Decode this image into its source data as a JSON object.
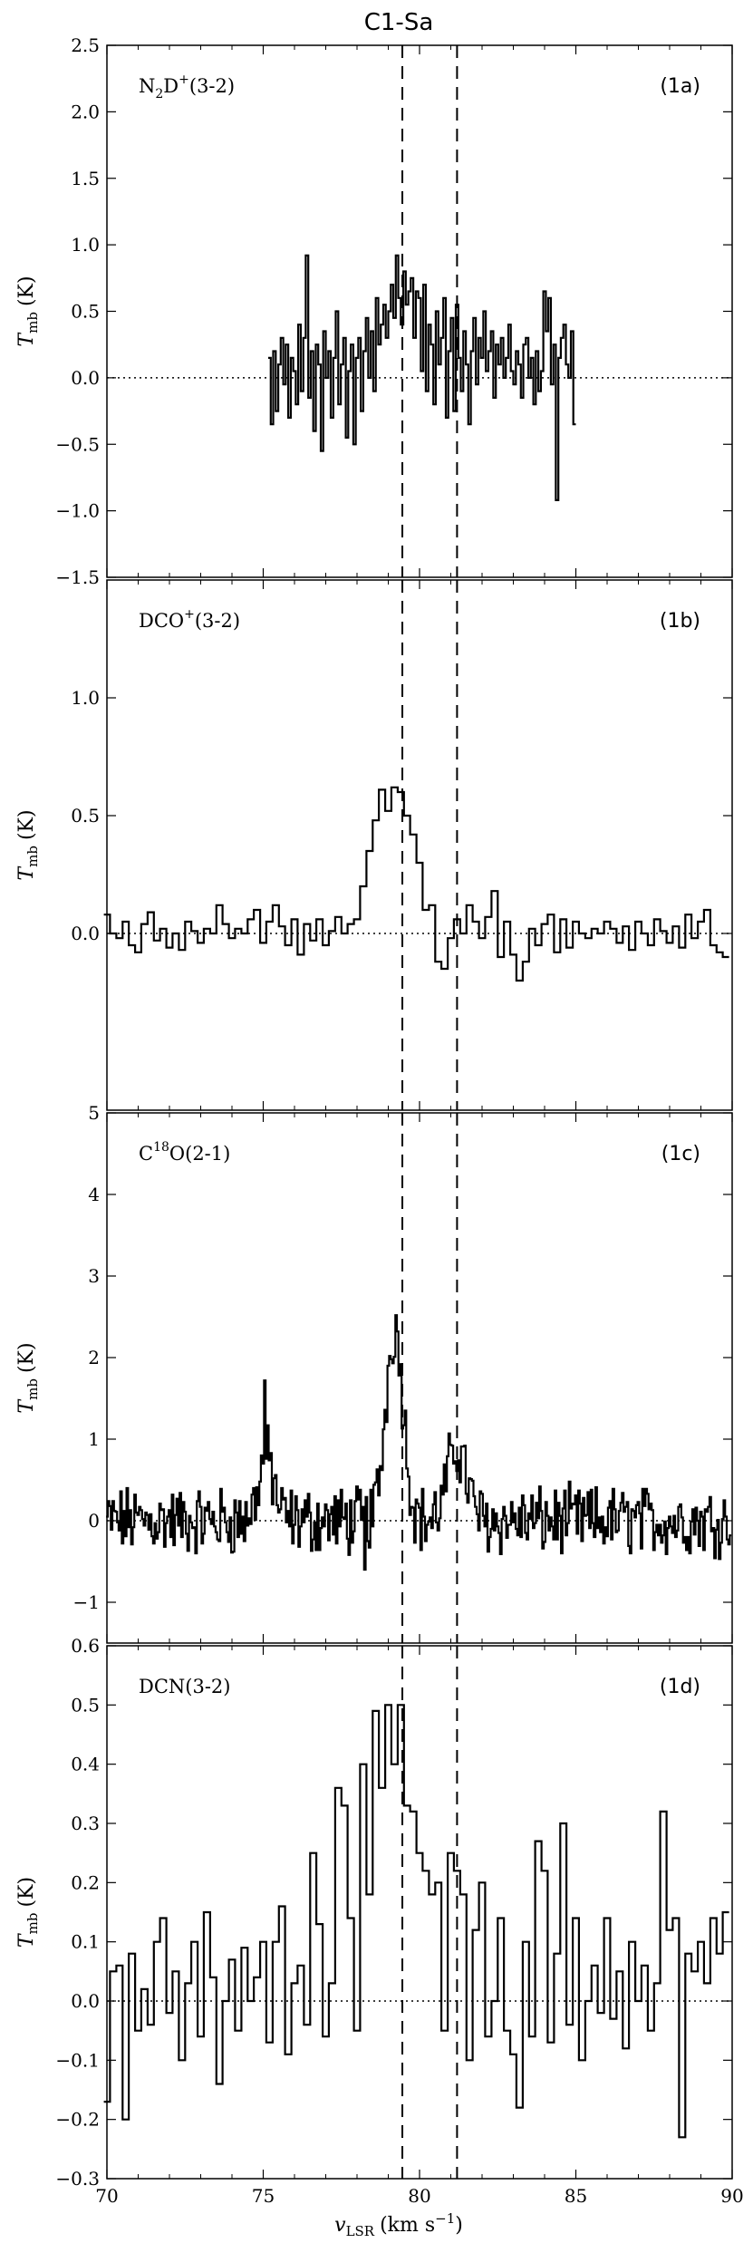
{
  "figure": {
    "title": "C1-Sa",
    "xlabel_main": "v",
    "xlabel_sub": "LSR",
    "xlabel_unit": "(km s",
    "xlabel_sup": "−1",
    "xlabel_close": ")",
    "ylabel_main": "T",
    "ylabel_sub": "mb",
    "ylabel_unit": "(K)",
    "xlim": [
      70,
      90
    ],
    "xticks": [
      70,
      75,
      80,
      85,
      90
    ],
    "vlines": [
      79.45,
      81.2
    ],
    "zero_line": 0.0
  },
  "chart_data": [
    {
      "type": "line",
      "step": true,
      "panel_label": "(1a)",
      "species_main": "N",
      "species_parts": [
        {
          "t": "N",
          "s": "base"
        },
        {
          "t": "2",
          "s": "sub"
        },
        {
          "t": "D",
          "s": "base"
        },
        {
          "t": "+",
          "s": "sup"
        },
        {
          "t": "(3-2)",
          "s": "base"
        }
      ],
      "ylim": [
        -1.5,
        2.5
      ],
      "yticks": [
        -1.5,
        -1.0,
        -0.5,
        0.0,
        0.5,
        1.0,
        1.5,
        2.0,
        2.5
      ],
      "ytick_labels": [
        "−1.5",
        "−1.0",
        "−0.5",
        "0.0",
        "0.5",
        "1.0",
        "1.5",
        "2.0",
        "2.5"
      ],
      "x": [
        75.2,
        75.28,
        75.36,
        75.44,
        75.52,
        75.6,
        75.68,
        75.76,
        75.84,
        75.92,
        76.0,
        76.08,
        76.16,
        76.24,
        76.32,
        76.4,
        76.48,
        76.56,
        76.64,
        76.72,
        76.8,
        76.88,
        76.96,
        77.04,
        77.12,
        77.2,
        77.28,
        77.36,
        77.44,
        77.52,
        77.6,
        77.68,
        77.76,
        77.84,
        77.92,
        78.0,
        78.08,
        78.16,
        78.24,
        78.32,
        78.4,
        78.48,
        78.56,
        78.64,
        78.72,
        78.8,
        78.88,
        78.96,
        79.04,
        79.12,
        79.2,
        79.28,
        79.36,
        79.44,
        79.52,
        79.6,
        79.68,
        79.76,
        79.84,
        79.92,
        80.0,
        80.08,
        80.16,
        80.24,
        80.32,
        80.4,
        80.48,
        80.56,
        80.64,
        80.72,
        80.8,
        80.88,
        80.96,
        81.04,
        81.12,
        81.2,
        81.28,
        81.36,
        81.44,
        81.52,
        81.6,
        81.68,
        81.76,
        81.84,
        81.92,
        82.0,
        82.08,
        82.16,
        82.24,
        82.32,
        82.4,
        82.48,
        82.56,
        82.64,
        82.72,
        82.8,
        82.88,
        82.96,
        83.04,
        83.12,
        83.2,
        83.28,
        83.36,
        83.44,
        83.52,
        83.6,
        83.68,
        83.76,
        83.84,
        83.92,
        84.0,
        84.08,
        84.16,
        84.24,
        84.32,
        84.4,
        84.48,
        84.56,
        84.64,
        84.72,
        84.8,
        84.88,
        84.96
      ],
      "y": [
        0.15,
        -0.35,
        0.2,
        -0.25,
        0.1,
        0.3,
        -0.05,
        0.25,
        -0.3,
        0.15,
        0.05,
        -0.2,
        0.4,
        -0.1,
        0.3,
        0.92,
        -0.15,
        0.2,
        -0.4,
        0.25,
        0.1,
        -0.55,
        0.35,
        0.0,
        0.2,
        -0.3,
        0.15,
        0.5,
        -0.2,
        0.1,
        0.3,
        -0.45,
        0.05,
        0.25,
        -0.5,
        0.15,
        0.3,
        -0.25,
        0.2,
        0.45,
        0.0,
        0.35,
        -0.1,
        0.6,
        0.25,
        0.4,
        0.55,
        0.3,
        0.5,
        0.7,
        0.45,
        0.92,
        0.6,
        0.4,
        0.8,
        0.55,
        0.65,
        0.75,
        0.3,
        0.65,
        0.6,
        0.05,
        0.7,
        -0.1,
        0.4,
        0.25,
        -0.2,
        0.5,
        0.1,
        0.3,
        0.6,
        -0.3,
        0.2,
        0.45,
        -0.25,
        0.55,
        0.15,
        -0.1,
        0.35,
        0.1,
        -0.35,
        0.2,
        0.45,
        -0.05,
        0.3,
        0.15,
        0.5,
        0.05,
        0.2,
        0.35,
        -0.15,
        0.25,
        0.1,
        0.3,
        0.0,
        0.15,
        0.4,
        0.05,
        -0.05,
        0.2,
        0.1,
        -0.15,
        0.25,
        0.3,
        0.0,
        0.15,
        -0.2,
        0.2,
        -0.1,
        0.05,
        0.65,
        0.35,
        0.6,
        -0.05,
        0.25,
        -0.92,
        0.15,
        0.3,
        0.4,
        0.1,
        0.0,
        0.35,
        -0.35
      ]
    },
    {
      "type": "line",
      "step": true,
      "panel_label": "(1b)",
      "species_parts": [
        {
          "t": "DCO",
          "s": "base"
        },
        {
          "t": "+",
          "s": "sup"
        },
        {
          "t": "(3-2)",
          "s": "base"
        }
      ],
      "ylim": [
        -0.75,
        1.5
      ],
      "yticks": [
        0.0,
        0.5,
        1.0
      ],
      "ytick_labels": [
        "0.0",
        "0.5",
        "1.0"
      ],
      "x": [
        70.0,
        70.2,
        70.4,
        70.6,
        70.8,
        71.0,
        71.2,
        71.4,
        71.6,
        71.8,
        72.0,
        72.2,
        72.4,
        72.6,
        72.8,
        73.0,
        73.2,
        73.4,
        73.6,
        73.8,
        74.0,
        74.2,
        74.4,
        74.6,
        74.8,
        75.0,
        75.2,
        75.4,
        75.6,
        75.8,
        76.0,
        76.2,
        76.4,
        76.6,
        76.8,
        77.0,
        77.2,
        77.4,
        77.6,
        77.8,
        78.0,
        78.2,
        78.4,
        78.6,
        78.8,
        79.0,
        79.2,
        79.4,
        79.6,
        79.8,
        80.0,
        80.2,
        80.4,
        80.6,
        80.8,
        81.0,
        81.2,
        81.4,
        81.6,
        81.8,
        82.0,
        82.2,
        82.4,
        82.6,
        82.8,
        83.0,
        83.2,
        83.4,
        83.6,
        83.8,
        84.0,
        84.2,
        84.4,
        84.6,
        84.8,
        85.0,
        85.2,
        85.4,
        85.6,
        85.8,
        86.0,
        86.2,
        86.4,
        86.6,
        86.8,
        87.0,
        87.2,
        87.4,
        87.6,
        87.8,
        88.0,
        88.2,
        88.4,
        88.6,
        88.8,
        89.0,
        89.2,
        89.4,
        89.6,
        89.8
      ],
      "y": [
        0.08,
        0.0,
        -0.02,
        0.05,
        -0.05,
        -0.08,
        0.04,
        0.09,
        -0.03,
        0.02,
        -0.06,
        0.0,
        -0.07,
        0.05,
        0.01,
        -0.04,
        0.02,
        0.0,
        0.12,
        0.04,
        -0.02,
        0.02,
        0.0,
        0.06,
        0.1,
        -0.04,
        0.05,
        0.12,
        0.03,
        -0.05,
        0.06,
        -0.09,
        0.04,
        -0.03,
        0.06,
        -0.05,
        0.01,
        0.07,
        0.0,
        0.04,
        0.06,
        0.2,
        0.35,
        0.48,
        0.61,
        0.52,
        0.62,
        0.6,
        0.5,
        0.42,
        0.3,
        0.1,
        0.12,
        -0.12,
        -0.15,
        -0.02,
        0.06,
        0.0,
        0.12,
        0.05,
        -0.02,
        0.07,
        0.18,
        -0.1,
        0.05,
        -0.09,
        -0.2,
        -0.12,
        0.02,
        -0.05,
        0.04,
        0.08,
        -0.08,
        0.06,
        -0.06,
        0.05,
        0.0,
        -0.02,
        0.02,
        0.0,
        0.05,
        0.02,
        -0.04,
        0.03,
        -0.07,
        0.05,
        0.0,
        -0.05,
        0.06,
        0.01,
        -0.04,
        0.03,
        -0.06,
        0.08,
        -0.02,
        0.05,
        0.1,
        -0.05,
        -0.08,
        -0.1
      ]
    },
    {
      "type": "line",
      "step": true,
      "panel_label": "(1c)",
      "species_parts": [
        {
          "t": "C",
          "s": "base"
        },
        {
          "t": "18",
          "s": "sup"
        },
        {
          "t": "O(2-1)",
          "s": "base"
        }
      ],
      "ylim": [
        -1.5,
        5.0
      ],
      "yticks": [
        -1,
        0,
        1,
        2,
        3,
        4,
        5
      ],
      "ytick_labels": [
        "−1",
        "0",
        "1",
        "2",
        "3",
        "4",
        "5"
      ],
      "x": [],
      "y": [],
      "generated": true
    },
    {
      "type": "line",
      "step": true,
      "panel_label": "(1d)",
      "species_parts": [
        {
          "t": "DCN(3-2)",
          "s": "base"
        }
      ],
      "ylim": [
        -0.3,
        0.6
      ],
      "yticks": [
        -0.3,
        -0.2,
        -0.1,
        0.0,
        0.1,
        0.2,
        0.3,
        0.4,
        0.5,
        0.6
      ],
      "ytick_labels": [
        "−0.3",
        "−0.2",
        "−0.1",
        "0.0",
        "0.1",
        "0.2",
        "0.3",
        "0.4",
        "0.5",
        "0.6"
      ],
      "x": [
        70.0,
        70.2,
        70.4,
        70.6,
        70.8,
        71.0,
        71.2,
        71.4,
        71.6,
        71.8,
        72.0,
        72.2,
        72.4,
        72.6,
        72.8,
        73.0,
        73.2,
        73.4,
        73.6,
        73.8,
        74.0,
        74.2,
        74.4,
        74.6,
        74.8,
        75.0,
        75.2,
        75.4,
        75.6,
        75.8,
        76.0,
        76.2,
        76.4,
        76.6,
        76.8,
        77.0,
        77.2,
        77.4,
        77.6,
        77.8,
        78.0,
        78.2,
        78.4,
        78.6,
        78.8,
        79.0,
        79.2,
        79.4,
        79.6,
        79.8,
        80.0,
        80.2,
        80.4,
        80.6,
        80.8,
        81.0,
        81.2,
        81.4,
        81.6,
        81.8,
        82.0,
        82.2,
        82.4,
        82.6,
        82.8,
        83.0,
        83.2,
        83.4,
        83.6,
        83.8,
        84.0,
        84.2,
        84.4,
        84.6,
        84.8,
        85.0,
        85.2,
        85.4,
        85.6,
        85.8,
        86.0,
        86.2,
        86.4,
        86.6,
        86.8,
        87.0,
        87.2,
        87.4,
        87.6,
        87.8,
        88.0,
        88.2,
        88.4,
        88.6,
        88.8,
        89.0,
        89.2,
        89.4,
        89.6,
        89.8
      ],
      "y": [
        -0.17,
        0.05,
        0.06,
        -0.2,
        0.08,
        -0.05,
        0.02,
        -0.04,
        0.1,
        0.14,
        -0.02,
        0.05,
        -0.1,
        0.03,
        0.1,
        -0.06,
        0.15,
        0.04,
        -0.14,
        0.0,
        0.07,
        -0.05,
        0.09,
        0.0,
        0.04,
        0.1,
        -0.07,
        0.1,
        0.16,
        -0.09,
        0.03,
        0.06,
        -0.04,
        0.25,
        0.13,
        -0.06,
        0.03,
        0.36,
        0.33,
        0.14,
        -0.05,
        0.4,
        0.18,
        0.49,
        0.36,
        0.5,
        0.4,
        0.5,
        0.33,
        0.32,
        0.25,
        0.22,
        0.18,
        0.2,
        -0.05,
        0.25,
        0.22,
        0.18,
        -0.1,
        0.12,
        0.2,
        -0.06,
        0.0,
        0.14,
        -0.05,
        -0.09,
        -0.18,
        0.1,
        -0.06,
        0.27,
        0.22,
        -0.07,
        0.08,
        0.3,
        -0.04,
        0.14,
        -0.1,
        0.0,
        0.06,
        -0.02,
        0.14,
        -0.03,
        0.05,
        -0.08,
        0.1,
        0.0,
        0.06,
        -0.05,
        0.03,
        0.32,
        0.12,
        0.14,
        -0.23,
        0.08,
        0.05,
        0.1,
        0.03,
        0.14,
        0.08,
        0.15
      ]
    }
  ]
}
